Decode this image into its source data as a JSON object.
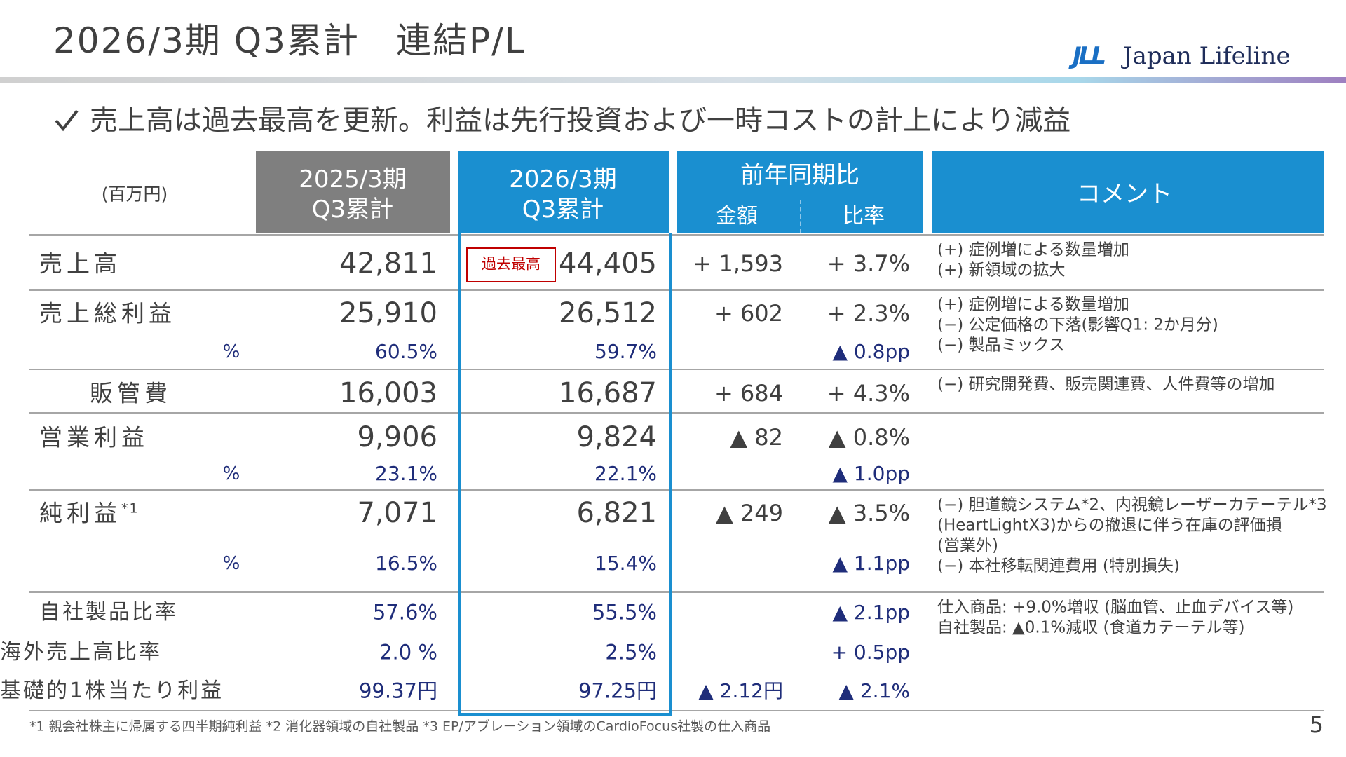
{
  "header": {
    "title": "2026/3期 Q3累計　連結P/L",
    "logo_mark": "JLL",
    "logo": "Japan Lifeline"
  },
  "headline": "売上高は過去最高を更新。利益は先行投資および一時コストの計上により減益",
  "table": {
    "unit": "(百万円)",
    "col_prev": [
      "2025/3期",
      "Q3累計"
    ],
    "col_curr": [
      "2026/3期",
      "Q3累計"
    ],
    "col_yoy": "前年同期比",
    "col_amount": "金額",
    "col_ratio": "比率",
    "col_comment": "コメント",
    "record_badge": "過去最高",
    "rows": [
      {
        "label": "売上高",
        "prev": "42,811",
        "curr": "44,405",
        "amount": "+ 1,593",
        "ratio": "+ 3.7%",
        "comments": [
          "(+) 症例増による数量増加",
          "(+) 新領域の拡大"
        ]
      },
      {
        "label": "売上総利益",
        "prev": "25,910",
        "curr": "26,512",
        "amount": "+ 602",
        "ratio": "+ 2.3%",
        "comments": [
          "(+) 症例増による数量増加",
          "(−) 公定価格の下落(影響Q1: 2か月分)",
          "(−) 製品ミックス"
        ]
      },
      {
        "label": "%",
        "prev": "60.5%",
        "curr": "59.7%",
        "ratio": "▲ 0.8pp"
      },
      {
        "label": "販管費",
        "prev": "16,003",
        "curr": "16,687",
        "amount": "+ 684",
        "ratio": "+ 4.3%",
        "comments": [
          "(−) 研究開発費、販売関連費、人件費等の増加"
        ]
      },
      {
        "label": "営業利益",
        "prev": "9,906",
        "curr": "9,824",
        "amount": "▲ 82",
        "ratio": "▲ 0.8%"
      },
      {
        "label": "%",
        "prev": "23.1%",
        "curr": "22.1%",
        "ratio": "▲ 1.0pp"
      },
      {
        "label": "純利益",
        "label_note": "*1",
        "prev": "7,071",
        "curr": "6,821",
        "amount": "▲ 249",
        "ratio": "▲ 3.5%",
        "comments": [
          "(−) 胆道鏡システム*2、内視鏡レーザーカテーテル*3",
          "(HeartLightX3)からの撤退に伴う在庫の評価損",
          "(営業外)",
          "(−) 本社移転関連費用 (特別損失)"
        ]
      },
      {
        "label": "%",
        "prev": "16.5%",
        "curr": "15.4%",
        "ratio": "▲ 1.1pp"
      },
      {
        "label": "自社製品比率",
        "prev": "57.6%",
        "curr": "55.5%",
        "ratio": "▲ 2.1pp",
        "comments": [
          "仕入商品: +9.0%増収 (脳血管、止血デバイス等)",
          "自社製品: ▲0.1%減収 (食道カテーテル等)"
        ]
      },
      {
        "label": "海外売上高比率",
        "prev": "2.0 %",
        "curr": "2.5%",
        "ratio": "+ 0.5pp"
      },
      {
        "label": "基礎的1株当たり利益",
        "prev": "99.37円",
        "curr": "97.25円",
        "amount": "▲ 2.12円",
        "ratio": "▲ 2.1%"
      }
    ]
  },
  "footnote": "*1 親会社株主に帰属する四半期純利益 *2 消化器領域の自社製品 *3 EP/アブレーション領域のCardioFocus社製の仕入商品",
  "page_number": "5"
}
